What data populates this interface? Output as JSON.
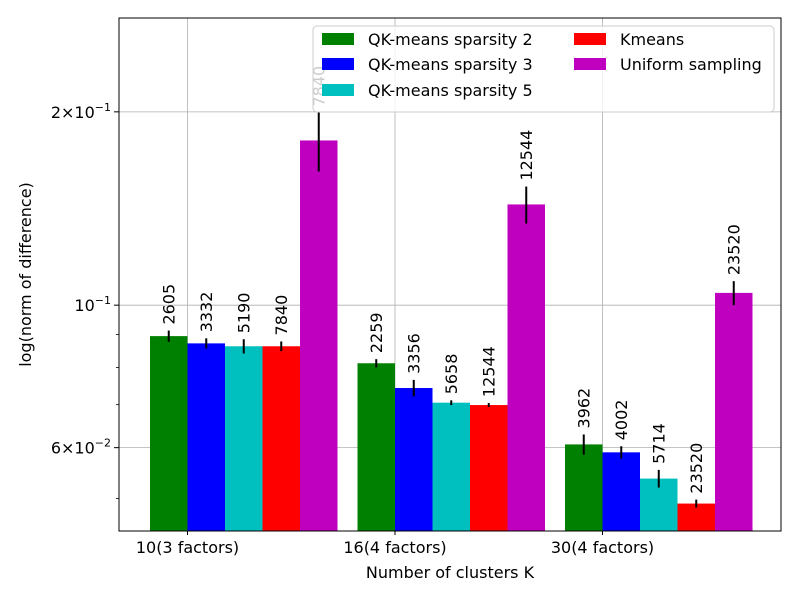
{
  "chart_data": {
    "type": "bar",
    "title": "",
    "xlabel": "Number of clusters K",
    "ylabel": "log(norm of difference)",
    "y_scale": "log",
    "ylim": [
      0.0445,
      0.28
    ],
    "y_ticks": [
      {
        "value": 0.2,
        "base": "2",
        "exp": "−1"
      },
      {
        "value": 0.1,
        "base": "10",
        "exp": "−1"
      },
      {
        "value": 0.06,
        "base": "6",
        "exp": "−2"
      }
    ],
    "y_minor_ticks": [
      0.05,
      0.07,
      0.08,
      0.09
    ],
    "grid": true,
    "legend_position": "top-right",
    "categories": [
      "10(3 factors)",
      "16(4 factors)",
      "30(4 factors)"
    ],
    "series": [
      {
        "name": "QK-means sparsity 2",
        "color": "#008000",
        "values": [
          0.0895,
          0.0812,
          0.0607
        ],
        "errors": [
          0.0018,
          0.0012,
          0.0022
        ],
        "labels": [
          "2605",
          "2259",
          "3962"
        ]
      },
      {
        "name": "QK-means sparsity 3",
        "color": "#0000ff",
        "values": [
          0.0872,
          0.0743,
          0.059
        ],
        "errors": [
          0.0016,
          0.0022,
          0.0013
        ],
        "labels": [
          "3332",
          "3356",
          "4002"
        ]
      },
      {
        "name": "QK-means sparsity 5",
        "color": "#00bfbf",
        "values": [
          0.0863,
          0.0705,
          0.0537
        ],
        "errors": [
          0.0022,
          0.0006,
          0.0017
        ],
        "labels": [
          "5190",
          "5658",
          "5714"
        ]
      },
      {
        "name": "Kmeans",
        "color": "#ff0000",
        "values": [
          0.0863,
          0.0699,
          0.0491
        ],
        "errors": [
          0.0015,
          0.0005,
          0.0007
        ],
        "labels": [
          "7840",
          "12544",
          "23520"
        ]
      },
      {
        "name": "Uniform sampling",
        "color": "#bf00bf",
        "values": [
          0.1805,
          0.1435,
          0.1045
        ],
        "errors": [
          0.019,
          0.0095,
          0.0045
        ],
        "labels": [
          "7840",
          "12544",
          "23520"
        ]
      }
    ]
  }
}
